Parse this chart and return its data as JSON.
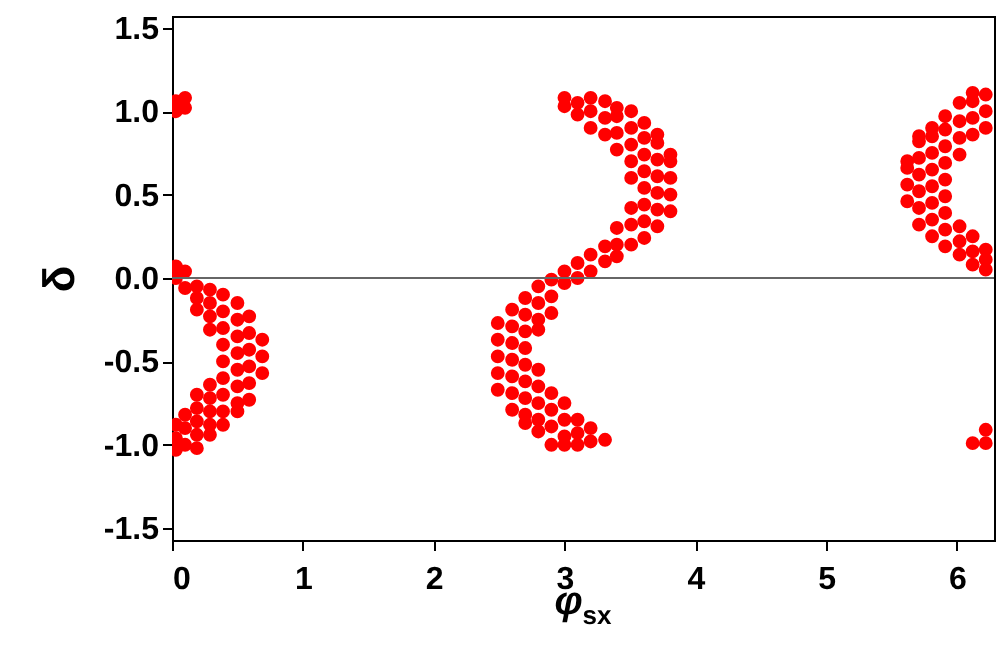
{
  "chart_data": {
    "type": "scatter",
    "xlabel": "φ$_{sx}$",
    "ylabel": "δ",
    "xlim": [
      0,
      6.2832
    ],
    "ylim": [
      -1.5708,
      1.5708
    ],
    "xticks": [
      0,
      1,
      2,
      3,
      4,
      5,
      6
    ],
    "yticks": [
      -1.5,
      {
        "value": -1,
        "label": "-1.0"
      },
      -0.5,
      {
        "value": 0,
        "label": "0.0"
      },
      0.5,
      {
        "value": 1,
        "label": "1.0"
      },
      1.5
    ],
    "grid": false,
    "marker": "circle",
    "ref_lines": [
      {
        "axis": "y",
        "value": 0,
        "color": "#666666"
      }
    ],
    "series": [
      {
        "color": "#ff0000",
        "x": [
          0.03,
          0.03,
          0.03,
          0.03,
          0.03,
          0.03,
          0.03,
          0.1,
          0.1,
          0.1,
          0.1,
          0.1,
          0.1,
          0.1,
          0.19,
          0.19,
          0.19,
          0.19,
          0.19,
          0.19,
          0.19,
          0.19,
          0.29,
          0.29,
          0.29,
          0.29,
          0.29,
          0.29,
          0.29,
          0.29,
          0.29,
          0.39,
          0.39,
          0.39,
          0.39,
          0.39,
          0.39,
          0.39,
          0.39,
          0.39,
          0.5,
          0.5,
          0.5,
          0.5,
          0.5,
          0.5,
          0.5,
          0.5,
          0.59,
          0.59,
          0.59,
          0.59,
          0.59,
          0.59,
          0.69,
          0.69,
          0.69,
          2.49,
          2.49,
          2.49,
          2.49,
          2.49,
          2.6,
          2.6,
          2.6,
          2.6,
          2.6,
          2.6,
          2.6,
          2.7,
          2.7,
          2.7,
          2.7,
          2.7,
          2.7,
          2.7,
          2.7,
          2.7,
          2.8,
          2.8,
          2.8,
          2.8,
          2.8,
          2.8,
          2.8,
          2.8,
          2.8,
          2.9,
          2.9,
          2.9,
          2.9,
          2.9,
          2.9,
          2.9,
          3.0,
          3.0,
          3.0,
          3.0,
          3.0,
          3.0,
          3.0,
          3.0,
          3.1,
          3.1,
          3.1,
          3.1,
          3.1,
          3.1,
          3.1,
          3.2,
          3.2,
          3.2,
          3.2,
          3.2,
          3.2,
          3.2,
          3.31,
          3.31,
          3.31,
          3.31,
          3.31,
          3.31,
          3.4,
          3.4,
          3.4,
          3.4,
          3.4,
          3.4,
          3.4,
          3.51,
          3.51,
          3.51,
          3.51,
          3.51,
          3.51,
          3.51,
          3.51,
          3.61,
          3.61,
          3.61,
          3.61,
          3.61,
          3.61,
          3.61,
          3.61,
          3.71,
          3.71,
          3.71,
          3.71,
          3.71,
          3.71,
          3.71,
          3.81,
          3.81,
          3.81,
          3.81,
          3.81,
          5.62,
          5.62,
          5.62,
          5.62,
          5.71,
          5.71,
          5.71,
          5.71,
          5.71,
          5.71,
          5.71,
          5.81,
          5.81,
          5.81,
          5.81,
          5.81,
          5.81,
          5.81,
          5.81,
          5.91,
          5.91,
          5.91,
          5.91,
          5.91,
          5.91,
          5.91,
          5.91,
          5.91,
          6.02,
          6.02,
          6.02,
          6.02,
          6.02,
          6.02,
          6.02,
          6.12,
          6.12,
          6.12,
          6.12,
          6.12,
          6.12,
          6.12,
          6.12,
          6.22,
          6.22,
          6.22,
          6.22,
          6.22,
          6.22,
          6.22,
          6.22
        ],
        "values": [
          -0.88,
          -0.96,
          -1.03,
          0.07,
          0.0,
          1.0,
          1.06,
          0.04,
          -0.06,
          -0.82,
          -0.9,
          -1.0,
          1.02,
          1.08,
          -0.05,
          -0.12,
          -0.19,
          -0.7,
          -0.78,
          -0.86,
          -0.94,
          -1.02,
          -0.07,
          -0.15,
          -0.23,
          -0.31,
          -0.64,
          -0.72,
          -0.8,
          -0.88,
          -0.94,
          -0.1,
          -0.2,
          -0.3,
          -0.4,
          -0.5,
          -0.6,
          -0.7,
          -0.8,
          -0.88,
          -0.15,
          -0.25,
          -0.35,
          -0.45,
          -0.55,
          -0.65,
          -0.75,
          -0.8,
          -0.23,
          -0.33,
          -0.43,
          -0.53,
          -0.63,
          -0.73,
          -0.37,
          -0.47,
          -0.57,
          -0.27,
          -0.37,
          -0.47,
          -0.57,
          -0.67,
          -0.19,
          -0.29,
          -0.39,
          -0.49,
          -0.59,
          -0.69,
          -0.79,
          -0.12,
          -0.22,
          -0.32,
          -0.42,
          -0.52,
          -0.62,
          -0.72,
          -0.82,
          -0.87,
          -0.05,
          -0.15,
          -0.25,
          -0.31,
          -0.55,
          -0.65,
          -0.75,
          -0.85,
          -0.92,
          -0.01,
          -0.11,
          -0.21,
          -0.69,
          -0.79,
          -0.89,
          -1.0,
          0.04,
          -0.03,
          -0.75,
          -0.85,
          -0.95,
          -1.0,
          1.03,
          1.08,
          0.09,
          0.0,
          -0.85,
          -0.93,
          -1.0,
          0.98,
          1.05,
          0.14,
          0.04,
          -0.9,
          -0.98,
          0.9,
          1.0,
          1.08,
          0.19,
          0.1,
          -0.97,
          0.86,
          0.96,
          1.06,
          0.3,
          0.2,
          0.13,
          0.77,
          0.87,
          0.97,
          1.02,
          0.42,
          0.32,
          0.2,
          0.6,
          0.7,
          0.8,
          0.9,
          1.0,
          0.24,
          0.34,
          0.44,
          0.54,
          0.64,
          0.74,
          0.84,
          0.93,
          0.31,
          0.41,
          0.51,
          0.61,
          0.71,
          0.81,
          0.86,
          0.4,
          0.5,
          0.6,
          0.7,
          0.74,
          0.46,
          0.56,
          0.66,
          0.7,
          0.32,
          0.42,
          0.52,
          0.62,
          0.72,
          0.82,
          0.85,
          0.25,
          0.35,
          0.45,
          0.55,
          0.65,
          0.75,
          0.85,
          0.9,
          0.19,
          0.29,
          0.39,
          0.49,
          0.59,
          0.69,
          0.79,
          0.89,
          0.97,
          0.74,
          0.84,
          0.94,
          1.05,
          0.14,
          0.22,
          0.31,
          0.86,
          0.96,
          1.06,
          1.11,
          0.08,
          0.16,
          0.25,
          -0.99,
          0.9,
          1.0,
          1.1,
          0.05,
          0.11,
          0.17,
          -0.91,
          -0.99
        ]
      }
    ]
  }
}
